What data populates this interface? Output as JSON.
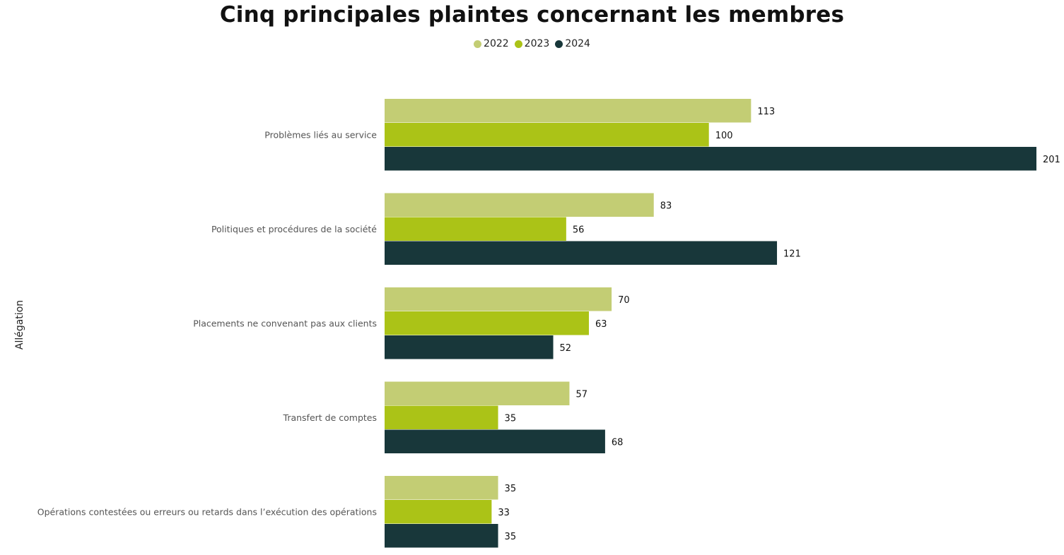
{
  "chart_data": {
    "type": "bar",
    "orientation": "horizontal",
    "title": "Cinq principales plaintes concernant les membres",
    "ylabel": "Allégation",
    "xlabel": "",
    "categories": [
      "Problèmes liés au service",
      "Politiques et procédures de la société",
      "Placements ne convenant pas aux clients",
      "Transfert de comptes",
      "Opérations contestées ou erreurs ou retards dans l’exécution des opérations"
    ],
    "series": [
      {
        "name": "2022",
        "color": "#c3cd74",
        "values": [
          113,
          83,
          70,
          57,
          35
        ]
      },
      {
        "name": "2023",
        "color": "#abc317",
        "values": [
          100,
          56,
          63,
          35,
          33
        ]
      },
      {
        "name": "2024",
        "color": "#18373a",
        "values": [
          201,
          121,
          52,
          68,
          35
        ]
      }
    ],
    "xlim": [
      0,
      201
    ],
    "grid": false,
    "legend_position": "top-center",
    "data_labels": true
  }
}
